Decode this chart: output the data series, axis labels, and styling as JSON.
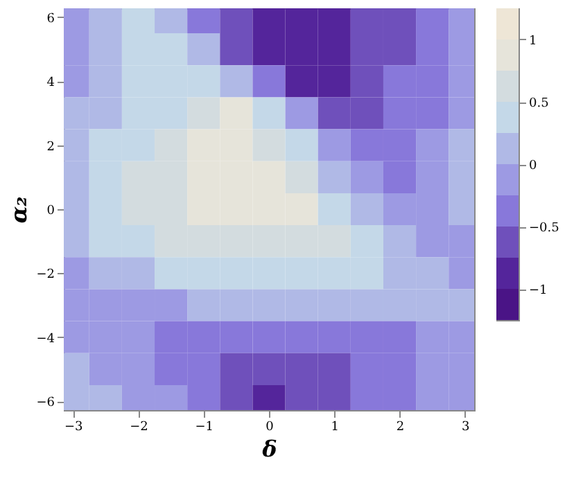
{
  "chart_data": {
    "type": "heatmap",
    "xlabel": "δ",
    "ylabel": "α₂",
    "x": [
      -3,
      -2.5,
      -2,
      -1.5,
      -1,
      -0.5,
      0,
      0.5,
      1,
      1.5,
      2,
      2.5,
      3
    ],
    "y": [
      6,
      5,
      4,
      3,
      2,
      1,
      0,
      -1,
      -2,
      -3,
      -4,
      -5,
      -6
    ],
    "cells": [
      [
        -0.125,
        0.125,
        0.375,
        0.125,
        -0.375,
        -0.625,
        -0.875,
        -0.875,
        -0.875,
        -0.625,
        -0.625,
        -0.375,
        -0.125
      ],
      [
        -0.125,
        0.125,
        0.375,
        0.375,
        0.125,
        -0.625,
        -0.875,
        -0.875,
        -0.875,
        -0.625,
        -0.625,
        -0.375,
        -0.125
      ],
      [
        -0.125,
        0.125,
        0.375,
        0.375,
        0.375,
        0.125,
        -0.375,
        -0.875,
        -0.875,
        -0.625,
        -0.375,
        -0.375,
        -0.125
      ],
      [
        0.125,
        0.125,
        0.375,
        0.375,
        0.625,
        0.875,
        0.375,
        -0.125,
        -0.625,
        -0.625,
        -0.375,
        -0.375,
        -0.125
      ],
      [
        0.125,
        0.375,
        0.375,
        0.625,
        0.875,
        0.875,
        0.625,
        0.375,
        -0.125,
        -0.375,
        -0.375,
        -0.125,
        0.125
      ],
      [
        0.125,
        0.375,
        0.625,
        0.625,
        0.875,
        0.875,
        0.875,
        0.625,
        0.125,
        -0.125,
        -0.375,
        -0.125,
        0.125
      ],
      [
        0.125,
        0.375,
        0.625,
        0.625,
        0.875,
        0.875,
        0.875,
        0.875,
        0.375,
        0.125,
        -0.125,
        -0.125,
        0.125
      ],
      [
        0.125,
        0.375,
        0.375,
        0.625,
        0.625,
        0.625,
        0.625,
        0.625,
        0.625,
        0.375,
        0.125,
        -0.125,
        -0.125
      ],
      [
        -0.125,
        0.125,
        0.125,
        0.375,
        0.375,
        0.375,
        0.375,
        0.375,
        0.375,
        0.375,
        0.125,
        0.125,
        -0.125
      ],
      [
        -0.125,
        -0.125,
        -0.125,
        -0.125,
        0.125,
        0.125,
        0.125,
        0.125,
        0.125,
        0.125,
        0.125,
        0.125,
        0.125
      ],
      [
        -0.125,
        -0.125,
        -0.125,
        -0.375,
        -0.375,
        -0.375,
        -0.375,
        -0.375,
        -0.375,
        -0.375,
        -0.375,
        -0.125,
        -0.125
      ],
      [
        0.125,
        -0.125,
        -0.125,
        -0.375,
        -0.375,
        -0.625,
        -0.625,
        -0.625,
        -0.625,
        -0.375,
        -0.375,
        -0.125,
        -0.125
      ],
      [
        0.125,
        0.125,
        -0.125,
        -0.125,
        -0.375,
        -0.625,
        -0.875,
        -0.625,
        -0.625,
        -0.375,
        -0.375,
        -0.125,
        -0.125
      ]
    ],
    "colors": [
      "#4a1486",
      "#54259b",
      "#6f50bb",
      "#8878da",
      "#9d9ae3",
      "#b0b9e6",
      "#c4d8e8",
      "#d3dcdf",
      "#e6e4da",
      "#eee6d6"
    ],
    "clim": [
      -1.25,
      1.25
    ],
    "cticks": [
      -1,
      -0.5,
      0,
      0.5,
      1
    ],
    "xlim": [
      -3.14,
      3.14
    ],
    "ylim": [
      -6.28,
      6.28
    ],
    "xticks": [
      -3,
      -2,
      -1,
      0,
      1,
      2,
      3
    ],
    "yticks": [
      -6,
      -4,
      -2,
      0,
      2,
      4,
      6
    ]
  }
}
